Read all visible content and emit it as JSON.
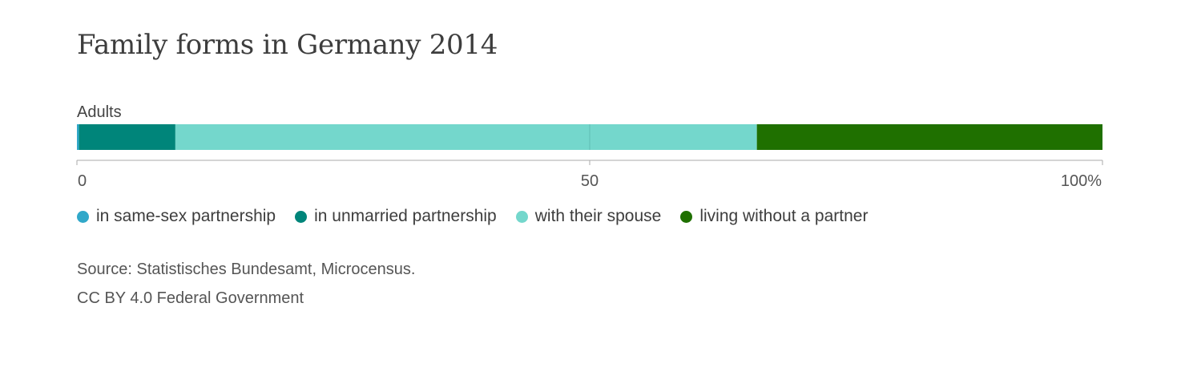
{
  "chart_data": {
    "type": "bar",
    "orientation": "horizontal-stacked",
    "title": "Family forms in Germany 2014",
    "categories": [
      "Adults"
    ],
    "series": [
      {
        "name": "in same-sex partnership",
        "values": [
          0.2
        ],
        "color": "#31a8c9"
      },
      {
        "name": "in unmarried partnership",
        "values": [
          9.4
        ],
        "color": "#00857a"
      },
      {
        "name": "with their spouse",
        "values": [
          56.7
        ],
        "color": "#74d7cc"
      },
      {
        "name": "living without a partner",
        "values": [
          33.7
        ],
        "color": "#1f7000"
      }
    ],
    "xlim": [
      0,
      100
    ],
    "x_ticks": [
      {
        "value": 0,
        "label": "0"
      },
      {
        "value": 50,
        "label": "50"
      },
      {
        "value": 100,
        "label": "100%"
      }
    ],
    "grid": false,
    "legend_position": "bottom-left"
  },
  "source_lines": [
    "Source: Statistisches Bundesamt, Microcensus.",
    "CC BY 4.0 Federal Government"
  ]
}
